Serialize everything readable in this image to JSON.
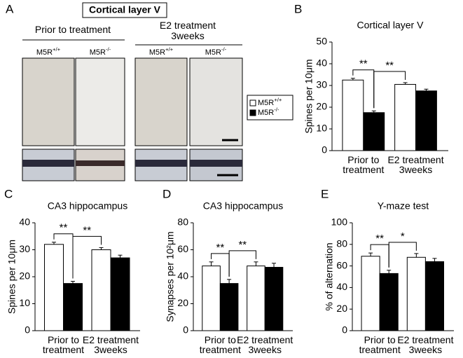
{
  "panel_a": {
    "letter": "A",
    "title": "Cortical layer V",
    "groups": [
      "Prior to treatment",
      "E2 treatment\n3weeks"
    ],
    "column_labels": [
      {
        "base": "M5R",
        "sup": "+/+"
      },
      {
        "base": "M5R",
        "sup": "-/-"
      },
      {
        "base": "M5R",
        "sup": "+/+"
      },
      {
        "base": "M5R",
        "sup": "-/-"
      }
    ],
    "legend": [
      {
        "base": "M5R",
        "sup": "+/+"
      },
      {
        "base": "M5R",
        "sup": "-/-"
      }
    ]
  },
  "chart_data": [
    {
      "type": "bar",
      "letter": "B",
      "title": "Cortical layer V",
      "ylabel": "Spines per 10μm",
      "categories": [
        "Prior to\ntreatment",
        "E2 treatment\n3weeks"
      ],
      "series": [
        {
          "color": "#ffffff",
          "values": [
            32.5,
            30.5
          ],
          "errors": [
            0.8,
            0.8
          ]
        },
        {
          "color": "#000000",
          "values": [
            17.5,
            27.5
          ],
          "errors": [
            0.8,
            0.8
          ]
        }
      ],
      "ylim": [
        0,
        50
      ],
      "yticks": [
        0,
        10,
        20,
        30,
        40,
        50
      ],
      "significance": [
        "**",
        "**"
      ]
    },
    {
      "type": "bar",
      "letter": "C",
      "title": "CA3 hippocampus",
      "ylabel": "Spines per 10μm",
      "categories": [
        "Prior to\ntreatment",
        "E2 treatment\n3weeks"
      ],
      "series": [
        {
          "color": "#ffffff",
          "values": [
            32,
            30
          ],
          "errors": [
            0.8,
            0.8
          ]
        },
        {
          "color": "#000000",
          "values": [
            17.5,
            27
          ],
          "errors": [
            0.8,
            1
          ]
        }
      ],
      "ylim": [
        0,
        40
      ],
      "yticks": [
        0,
        10,
        20,
        30,
        40
      ],
      "significance": [
        "**",
        "**"
      ]
    },
    {
      "type": "bar",
      "letter": "D",
      "title": "CA3 hippocampus",
      "ylabel": "Synapses per 10²μm",
      "categories": [
        "Prior to\ntreatment",
        "E2 treatment\n3weeks"
      ],
      "series": [
        {
          "color": "#ffffff",
          "values": [
            48,
            48
          ],
          "errors": [
            3,
            3
          ]
        },
        {
          "color": "#000000",
          "values": [
            35,
            47
          ],
          "errors": [
            3,
            3
          ]
        }
      ],
      "ylim": [
        0,
        80
      ],
      "yticks": [
        0,
        20,
        40,
        60,
        80
      ],
      "significance": [
        "**",
        "**"
      ]
    },
    {
      "type": "bar",
      "letter": "E",
      "title": "Y-maze test",
      "ylabel": "% of alternation",
      "categories": [
        "Prior to\ntreatment",
        "E2 treatment\n3weeks"
      ],
      "series": [
        {
          "color": "#ffffff",
          "values": [
            69,
            68
          ],
          "errors": [
            3,
            3.5
          ]
        },
        {
          "color": "#000000",
          "values": [
            53,
            64
          ],
          "errors": [
            3,
            3
          ]
        }
      ],
      "ylim": [
        0,
        100
      ],
      "yticks": [
        0,
        20,
        40,
        60,
        80,
        100
      ],
      "significance": [
        "**",
        "*"
      ]
    }
  ]
}
